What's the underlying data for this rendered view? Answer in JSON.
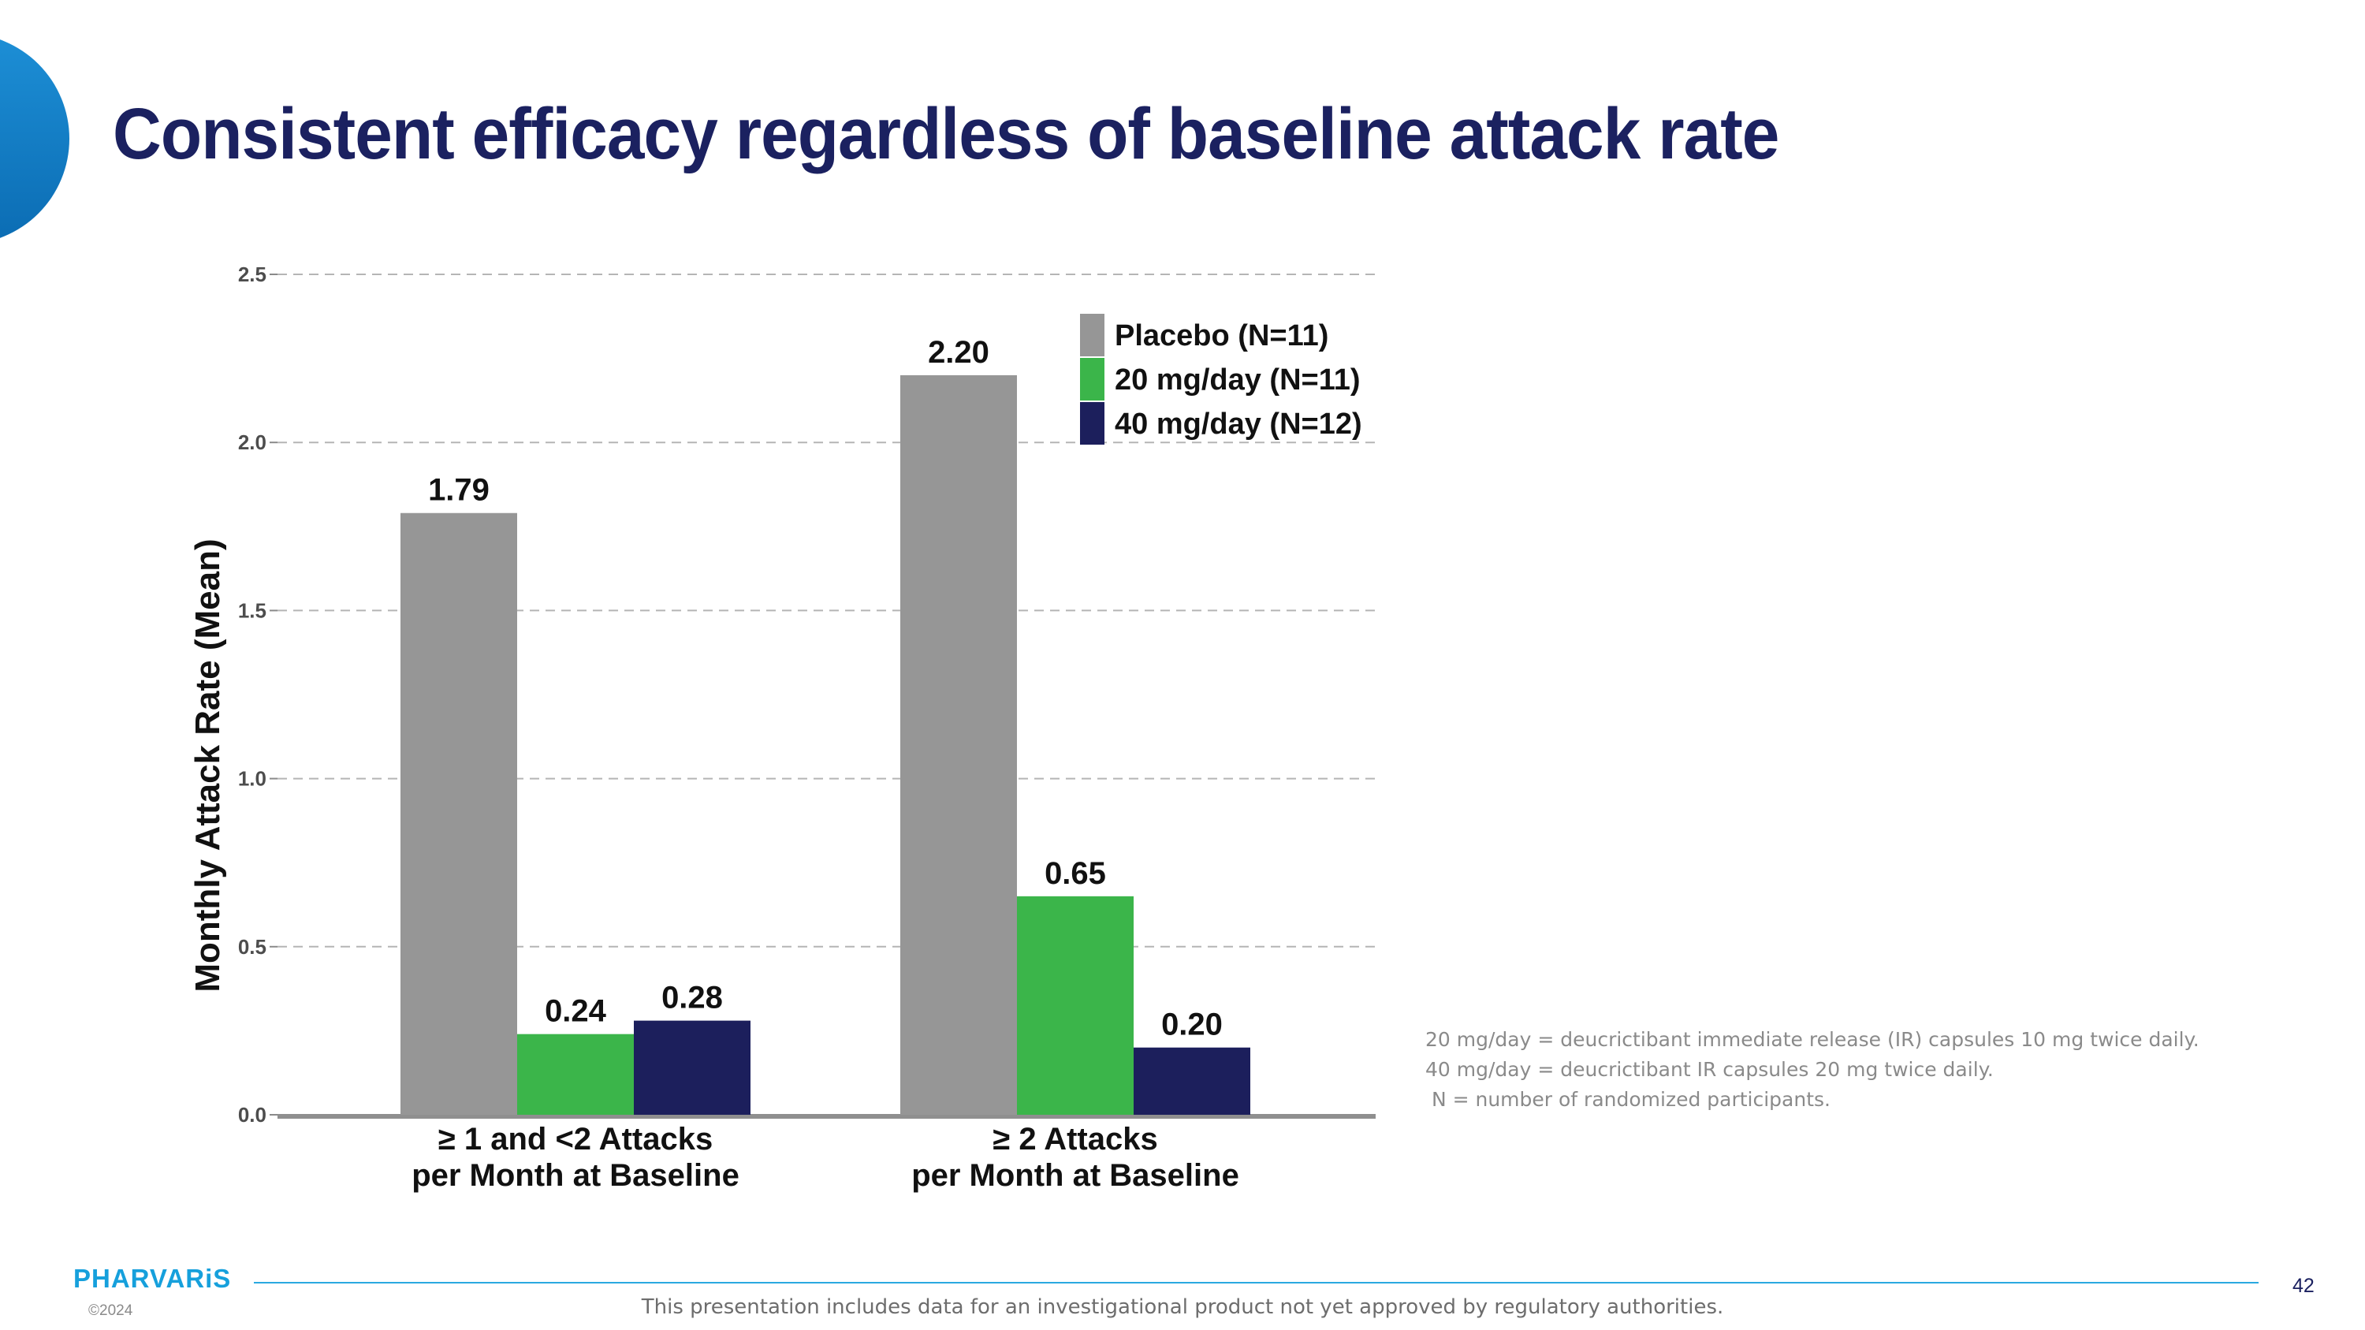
{
  "slide": {
    "title": "Consistent efficacy regardless of baseline attack rate",
    "footnotes": [
      "20 mg/day = deucrictibant immediate release (IR) capsules 10 mg twice daily.",
      "40 mg/day = deucrictibant IR capsules 20 mg twice daily.",
      " N = number of randomized participants."
    ],
    "logo_text": "PHARVARiS",
    "copyright": "©2024",
    "disclaimer": "This presentation includes data for an investigational product not yet approved by regulatory authorities.",
    "page_number": "42",
    "accent_color": "#1b2160",
    "brand_color": "#16a0dc"
  },
  "chart_data": {
    "type": "bar",
    "ylabel": "Monthly Attack Rate (Mean)",
    "ylim": [
      0,
      2.5
    ],
    "yticks": [
      "0.0",
      "0.5",
      "1.0",
      "1.5",
      "2.0",
      "2.5"
    ],
    "grid": "horizontal dashed",
    "legend_position": "top-right",
    "categories": [
      [
        "≥ 1 and <2 Attacks",
        "per Month at Baseline"
      ],
      [
        "≥ 2 Attacks",
        "per Month at Baseline"
      ]
    ],
    "series": [
      {
        "name": "Placebo (N=11)",
        "color": "#969696",
        "values": [
          1.79,
          2.2
        ],
        "labels": [
          "1.79",
          "2.20"
        ]
      },
      {
        "name": "20 mg/day (N=11)",
        "color": "#3bb54a",
        "values": [
          0.24,
          0.65
        ],
        "labels": [
          "0.24",
          "0.65"
        ]
      },
      {
        "name": "40 mg/day (N=12)",
        "color": "#1c1f5c",
        "values": [
          0.28,
          0.2
        ],
        "labels": [
          "0.28",
          "0.20"
        ]
      }
    ]
  }
}
